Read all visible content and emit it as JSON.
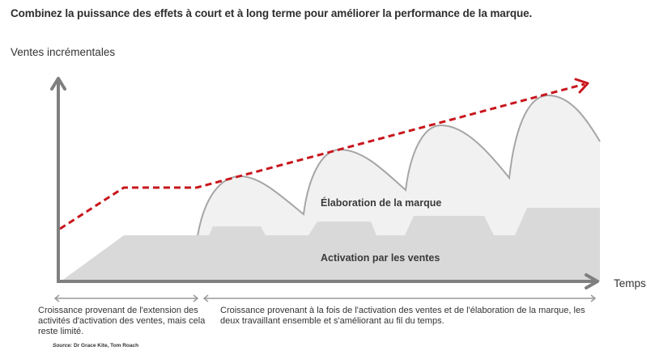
{
  "title": "Combinez la puissance des effets à court et à long terme pour améliorer la performance de la marque.",
  "axes": {
    "y_label": "Ventes incrémentales",
    "x_label": "Temps"
  },
  "areas": {
    "brand_building": "Élaboration de la marque",
    "sales_activation": "Activation par les ventes"
  },
  "phases": [
    {
      "text": "Croissance provenant de l'extension des activités d'activation des ventes, mais cela reste limité."
    },
    {
      "text": "Croissance provenant à la fois de l'activation des ventes et de l'élaboration de la marque, les deux travaillant ensemble et s'améliorant au fil du temps."
    }
  ],
  "source": {
    "label": "Source:",
    "authors": " Dr Grace Kite, Tom Roach"
  },
  "colors": {
    "axis": "#7f7f7f",
    "trend": "#c8161d",
    "brand_fill": "#f1f1f1",
    "brand_stroke": "#a6a6a6",
    "activation_fill": "#d9d9d9"
  }
}
